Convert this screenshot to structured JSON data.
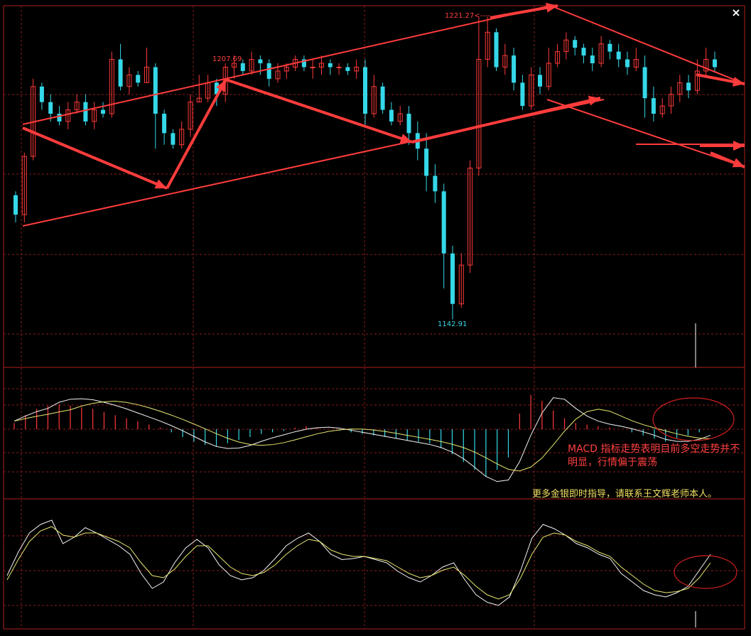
{
  "colors": {
    "background": "#000000",
    "grid": "#8a1a1a",
    "border": "#b02020",
    "bull": "#ff3a3a",
    "bear": "#35d8e8",
    "arrow": "#ff3c3c",
    "macd_line": "#f4f4f4",
    "signal_line": "#e8e870",
    "annotation_red": "#ff4040",
    "annotation_yellow": "#f0e060",
    "circle": "#d02020"
  },
  "icons": {
    "close": "close-icon"
  },
  "close_glyph": "×",
  "price_labels": {
    "high_1": "1207.69",
    "high_2": "1221.27",
    "low_1": "1142.91"
  },
  "annotations": {
    "macd_note": "MACD 指标走势表明目前多空走势并不明显，行情偏于震荡",
    "contact_note": "更多金银即时指导，请联系王文辉老师本人。"
  },
  "chart_data": [
    {
      "type": "candlestick",
      "title": "",
      "y_range": [
        1142.91,
        1221.27
      ],
      "series": [
        {
          "values": [
            [
              1175,
              1170,
              1176,
              1168
            ],
            [
              1170,
              1185,
              1186,
              1168
            ],
            [
              1185,
              1203,
              1205,
              1184
            ],
            [
              1203,
              1199,
              1204,
              1197
            ],
            [
              1199,
              1196,
              1201,
              1194
            ],
            [
              1196,
              1194,
              1198,
              1193
            ],
            [
              1194,
              1197,
              1199,
              1192
            ],
            [
              1197,
              1199,
              1201,
              1196
            ],
            [
              1199,
              1194,
              1201,
              1193
            ],
            [
              1194,
              1197,
              1199,
              1192
            ],
            [
              1197,
              1196,
              1199,
              1195
            ],
            [
              1196,
              1210,
              1212,
              1195
            ],
            [
              1210,
              1203,
              1214,
              1202
            ],
            [
              1203,
              1206,
              1208,
              1201
            ],
            [
              1206,
              1204,
              1207,
              1203
            ],
            [
              1204,
              1208,
              1213,
              1204
            ],
            [
              1208,
              1196,
              1209,
              1187
            ],
            [
              1196,
              1191,
              1197,
              1188
            ],
            [
              1191,
              1188,
              1192,
              1187
            ],
            [
              1188,
              1192,
              1194,
              1187
            ],
            [
              1192,
              1199,
              1201,
              1190
            ],
            [
              1199,
              1200,
              1206,
              1199
            ],
            [
              1200,
              1204,
              1206,
              1199
            ],
            [
              1204,
              1201,
              1205,
              1198
            ],
            [
              1201,
              1208,
              1209,
              1199
            ],
            [
              1208,
              1209,
              1211,
              1205
            ],
            [
              1209,
              1207,
              1210,
              1206
            ],
            [
              1207,
              1210,
              1212,
              1206
            ],
            [
              1210,
              1209,
              1211,
              1206
            ],
            [
              1209,
              1205,
              1210,
              1203
            ],
            [
              1205,
              1207,
              1209,
              1204
            ],
            [
              1207,
              1208,
              1209,
              1205
            ],
            [
              1208,
              1210,
              1211,
              1207
            ],
            [
              1210,
              1208,
              1211,
              1207
            ],
            [
              1208,
              1208,
              1210,
              1205
            ],
            [
              1208,
              1209,
              1211,
              1206
            ],
            [
              1209,
              1208,
              1210,
              1206
            ],
            [
              1208,
              1208,
              1209,
              1206
            ],
            [
              1208,
              1207,
              1209,
              1206
            ],
            [
              1207,
              1208,
              1210,
              1205
            ],
            [
              1208,
              1196,
              1210,
              1193
            ],
            [
              1196,
              1203,
              1206,
              1195
            ],
            [
              1203,
              1197,
              1204,
              1196
            ],
            [
              1197,
              1194,
              1199,
              1193
            ],
            [
              1194,
              1196,
              1198,
              1193
            ],
            [
              1196,
              1191,
              1198,
              1188
            ],
            [
              1191,
              1187,
              1194,
              1184
            ],
            [
              1187,
              1180,
              1191,
              1176
            ],
            [
              1180,
              1176,
              1183,
              1173
            ],
            [
              1176,
              1160,
              1178,
              1151
            ],
            [
              1160,
              1147,
              1162,
              1143
            ],
            [
              1147,
              1157,
              1160,
              1146
            ],
            [
              1157,
              1182,
              1184,
              1155
            ],
            [
              1182,
              1210,
              1221,
              1180
            ],
            [
              1210,
              1217,
              1221,
              1208
            ],
            [
              1217,
              1208,
              1218,
              1207
            ],
            [
              1208,
              1211,
              1214,
              1206
            ],
            [
              1211,
              1204,
              1213,
              1202
            ],
            [
              1204,
              1198,
              1206,
              1197
            ],
            [
              1198,
              1206,
              1208,
              1197
            ],
            [
              1206,
              1203,
              1208,
              1201
            ],
            [
              1203,
              1209,
              1213,
              1202
            ],
            [
              1209,
              1212,
              1214,
              1208
            ],
            [
              1212,
              1215,
              1217,
              1210
            ],
            [
              1215,
              1213,
              1216,
              1211
            ],
            [
              1213,
              1211,
              1214,
              1209
            ],
            [
              1211,
              1209,
              1213,
              1207
            ],
            [
              1209,
              1214,
              1216,
              1208
            ],
            [
              1214,
              1212,
              1215,
              1210
            ],
            [
              1212,
              1210,
              1214,
              1208
            ],
            [
              1210,
              1208,
              1212,
              1206
            ],
            [
              1208,
              1210,
              1213,
              1207
            ],
            [
              1208,
              1200,
              1211,
              1195
            ],
            [
              1200,
              1196,
              1203,
              1194
            ],
            [
              1196,
              1198,
              1200,
              1195
            ],
            [
              1198,
              1201,
              1203,
              1196
            ],
            [
              1201,
              1204,
              1206,
              1199
            ],
            [
              1204,
              1202,
              1206,
              1200
            ],
            [
              1202,
              1207,
              1210,
              1201
            ],
            [
              1207,
              1210,
              1213,
              1206
            ],
            [
              1210,
              1208,
              1212,
              1207
            ]
          ]
        }
      ]
    },
    {
      "type": "bar",
      "title": "",
      "series": [
        {
          "name": "MACD",
          "values": [
            0.4,
            0.9,
            1.3,
            1.5,
            1.6,
            1.5,
            1.4,
            1.3,
            1.1,
            0.9,
            0.7,
            0.5,
            0.3,
            0.1,
            -0.2,
            -0.5,
            -0.8,
            -1.0,
            -1.1,
            -0.9,
            -0.7,
            -0.5,
            -0.3,
            -0.2,
            -0.1,
            0.1,
            0.2,
            0.1,
            0,
            -0.1,
            -0.2,
            -0.3,
            -0.4,
            -0.5,
            -0.6,
            -0.7,
            -0.8,
            -0.9,
            -1.2,
            -1.6,
            -2.1,
            -2.6,
            -3.0,
            -2.6,
            -1.8,
            1.0,
            2.2,
            1.8,
            1.2,
            0.7,
            0.4,
            0.3,
            0.2,
            0.1,
            0,
            -0.2,
            -0.4,
            -0.6,
            -0.8,
            -0.6,
            -0.4,
            -0.2,
            0
          ]
        }
      ]
    },
    {
      "type": "line",
      "title": "",
      "series": [
        {
          "values": [
            40,
            62,
            80,
            88,
            92,
            70,
            76,
            85,
            80,
            74,
            68,
            60,
            42,
            28,
            34,
            52,
            66,
            74,
            66,
            50,
            40,
            36,
            38,
            45,
            56,
            68,
            75,
            80,
            72,
            60,
            55,
            56,
            58,
            55,
            52,
            44,
            38,
            34,
            40,
            48,
            52,
            36,
            22,
            15,
            12,
            20,
            45,
            75,
            88,
            84,
            78,
            70,
            66,
            60,
            56,
            42,
            34,
            26,
            22,
            20,
            24,
            30,
            45,
            60
          ]
        },
        {
          "values": [
            36,
            55,
            72,
            82,
            86,
            78,
            76,
            80,
            80,
            76,
            72,
            66,
            52,
            40,
            38,
            46,
            58,
            68,
            68,
            58,
            48,
            42,
            40,
            43,
            50,
            60,
            68,
            74,
            72,
            64,
            60,
            58,
            58,
            56,
            54,
            48,
            42,
            38,
            40,
            45,
            48,
            40,
            30,
            22,
            18,
            22,
            38,
            60,
            76,
            80,
            78,
            72,
            68,
            62,
            58,
            48,
            40,
            32,
            26,
            24,
            25,
            28,
            38,
            52
          ]
        }
      ]
    }
  ]
}
